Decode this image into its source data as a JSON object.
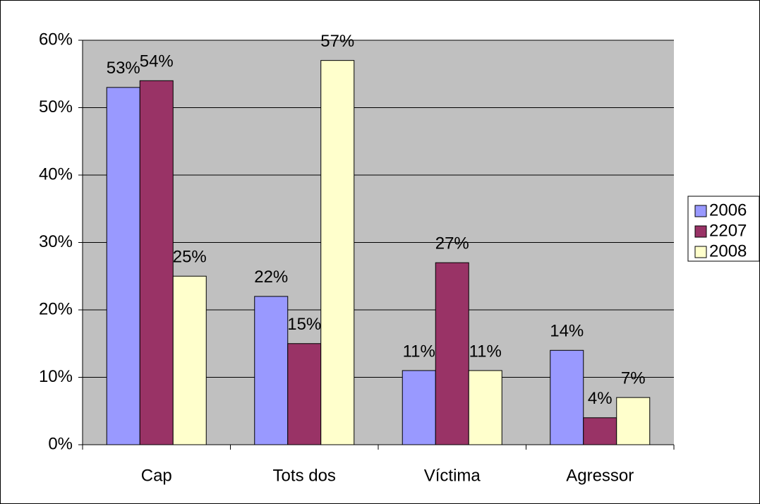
{
  "chart_data": {
    "type": "bar",
    "categories": [
      "Cap",
      "Tots dos",
      "Víctima",
      "Agressor"
    ],
    "series": [
      {
        "name": "2006",
        "color": "#9999FF",
        "values": [
          53,
          22,
          11,
          14
        ],
        "value_labels": [
          "53%",
          "22%",
          "11%",
          "14%"
        ]
      },
      {
        "name": "2207",
        "color": "#993366",
        "values": [
          54,
          15,
          27,
          4
        ],
        "value_labels": [
          "54%",
          "15%",
          "27%",
          "4%"
        ]
      },
      {
        "name": "2008",
        "color": "#FFFFCC",
        "values": [
          25,
          57,
          11,
          7
        ],
        "value_labels": [
          "25%",
          "57%",
          "11%",
          "7%"
        ]
      }
    ],
    "ylim": [
      0,
      60
    ],
    "yticks": [
      {
        "value": 0,
        "label": "0%"
      },
      {
        "value": 10,
        "label": "10%"
      },
      {
        "value": 20,
        "label": "20%"
      },
      {
        "value": 30,
        "label": "30%"
      },
      {
        "value": 40,
        "label": "40%"
      },
      {
        "value": 50,
        "label": "50%"
      },
      {
        "value": 60,
        "label": "60%"
      }
    ],
    "grid": true,
    "legend": "right",
    "plot_color": "#C0C0C0"
  }
}
